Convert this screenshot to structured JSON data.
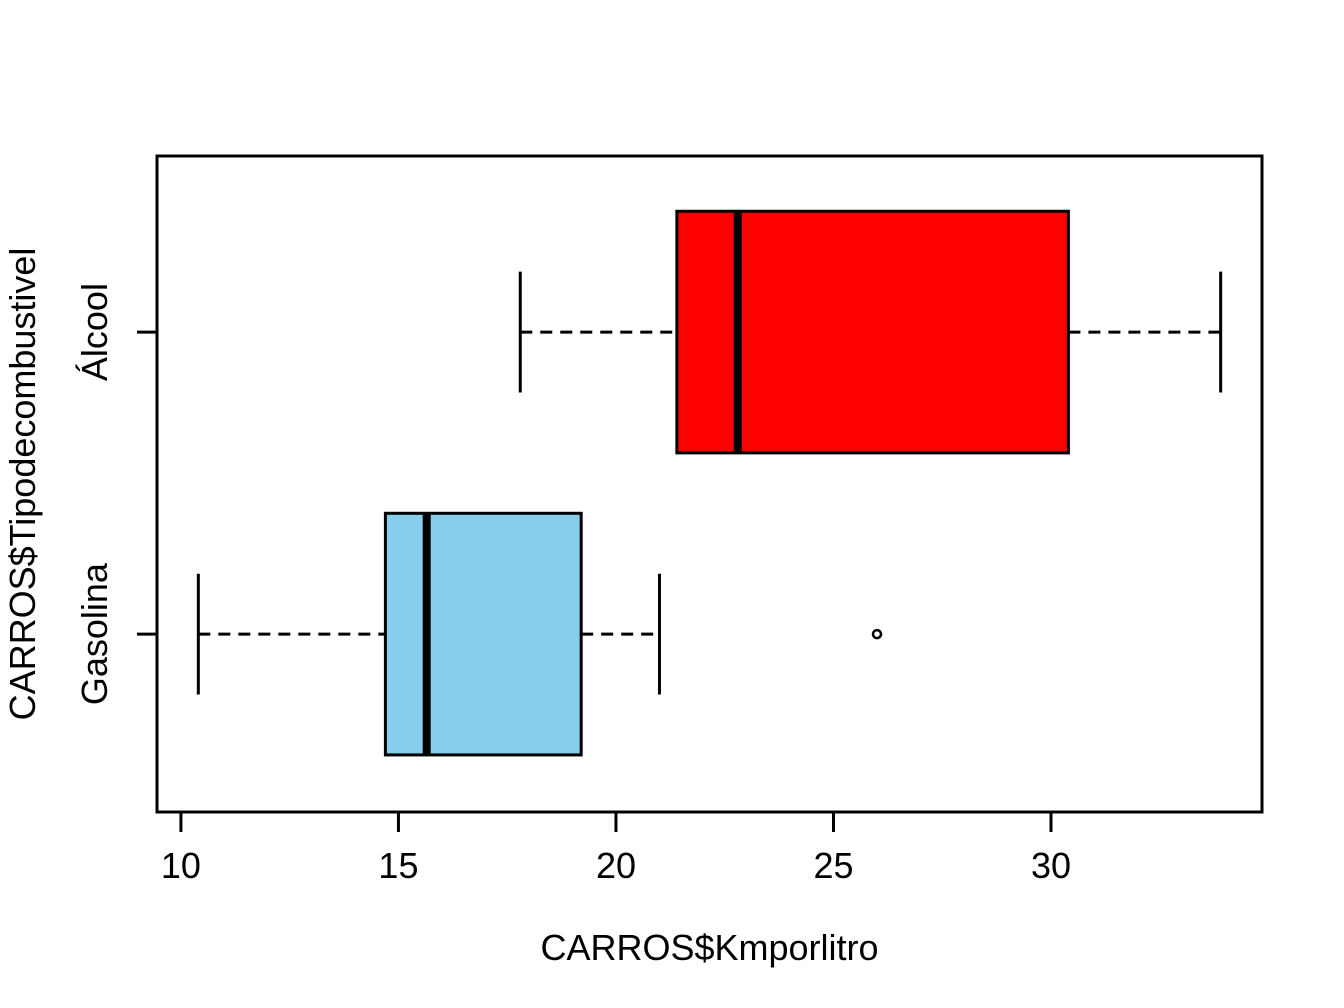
{
  "chart_data": {
    "type": "boxplot",
    "orientation": "horizontal",
    "title": "",
    "xlabel": "CARROS$Kmporlitro",
    "ylabel": "CARROS$Tipodecombustivel",
    "x_ticks": [
      10,
      15,
      20,
      25,
      30
    ],
    "xlim": [
      9.45,
      34.85
    ],
    "ylim": [
      0.411,
      2.583
    ],
    "grid": false,
    "legend": "none",
    "box_halfwidth": 0.4,
    "cap_halfwidth": 0.2,
    "series": [
      {
        "name": "Gasolina",
        "category_center": 1,
        "box_color": "#87CEEB",
        "border_color": "#000000",
        "whisker_low": 10.4,
        "q1": 14.7,
        "median": 15.65,
        "q3": 19.2,
        "whisker_high": 21.0,
        "outliers": [
          26
        ]
      },
      {
        "name": "Álcool",
        "category_center": 2,
        "box_color": "#FF0000",
        "border_color": "#000000",
        "whisker_low": 17.8,
        "q1": 21.4,
        "median": 22.8,
        "q3": 30.4,
        "whisker_high": 33.9,
        "outliers": []
      }
    ]
  },
  "colors": {
    "background": "#FFFFFF",
    "axis": "#000000",
    "text": "#000000"
  }
}
